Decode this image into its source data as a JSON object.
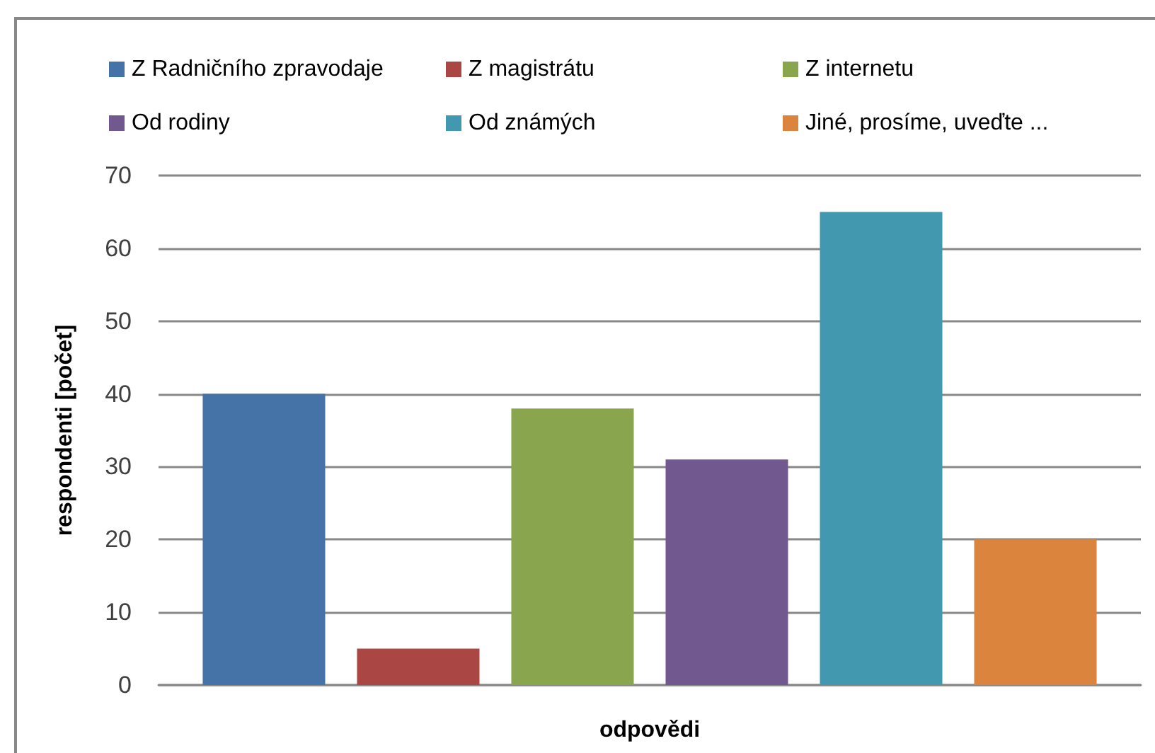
{
  "chart_data": {
    "type": "bar",
    "categories": [
      null
    ],
    "series": [
      {
        "name": "Z Radničního zpravodaje",
        "color": "#4572a7",
        "values": [
          40
        ]
      },
      {
        "name": "Z magistrátu",
        "color": "#aa4643",
        "values": [
          5
        ]
      },
      {
        "name": "Z internetu",
        "color": "#89a54e",
        "values": [
          38
        ]
      },
      {
        "name": "Od rodiny",
        "color": "#71588f",
        "values": [
          31
        ]
      },
      {
        "name": "Od známých",
        "color": "#4198af",
        "values": [
          65
        ]
      },
      {
        "name": "Jiné, prosíme, uveďte ...",
        "color": "#db843d",
        "values": [
          20
        ]
      }
    ],
    "xlabel": "odpovědi",
    "ylabel": "respondenti [počet]",
    "ylim": [
      0,
      70
    ],
    "yticks": [
      0,
      10,
      20,
      30,
      40,
      50,
      60,
      70
    ],
    "grid": "y",
    "legend": "top"
  }
}
